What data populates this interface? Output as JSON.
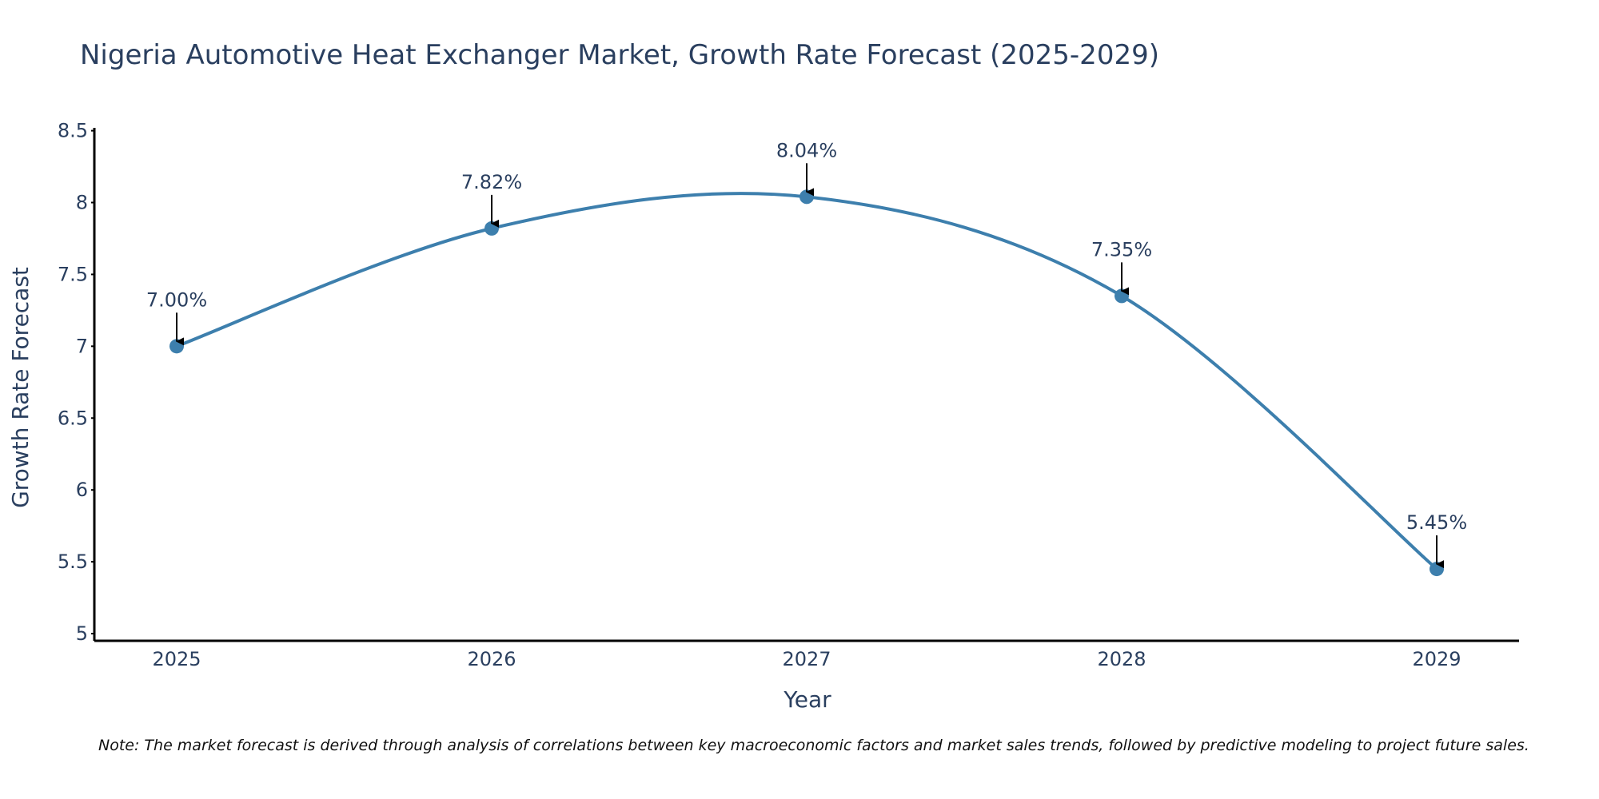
{
  "chart_data": {
    "type": "line",
    "title": "Nigeria Automotive Heat Exchanger Market, Growth Rate Forecast (2025-2029)",
    "xlabel": "Year",
    "ylabel": "Growth Rate Forecast",
    "x": [
      "2025",
      "2026",
      "2027",
      "2028",
      "2029"
    ],
    "values": [
      7.0,
      7.82,
      8.04,
      7.35,
      5.45
    ],
    "data_labels": [
      "7.00%",
      "7.82%",
      "8.04%",
      "7.35%",
      "5.45%"
    ],
    "ylim": [
      4.95,
      8.52
    ],
    "yticks": [
      5,
      5.5,
      6,
      6.5,
      7,
      7.5,
      8,
      8.5
    ],
    "ytick_labels": [
      "5",
      "5.5",
      "6",
      "6.5",
      "7",
      "7.5",
      "8",
      "8.5"
    ],
    "line_shape": "spline",
    "grid": false,
    "legend": "none",
    "note": "Note: The market forecast is derived through analysis of correlations between key macroeconomic factors and market sales trends, followed by predictive modeling to project future sales.",
    "colors": {
      "line": "#3d7fad",
      "marker": "#3d7fad",
      "text": "#2a3f5f",
      "axis": "#000000",
      "arrow": "#000000"
    }
  }
}
